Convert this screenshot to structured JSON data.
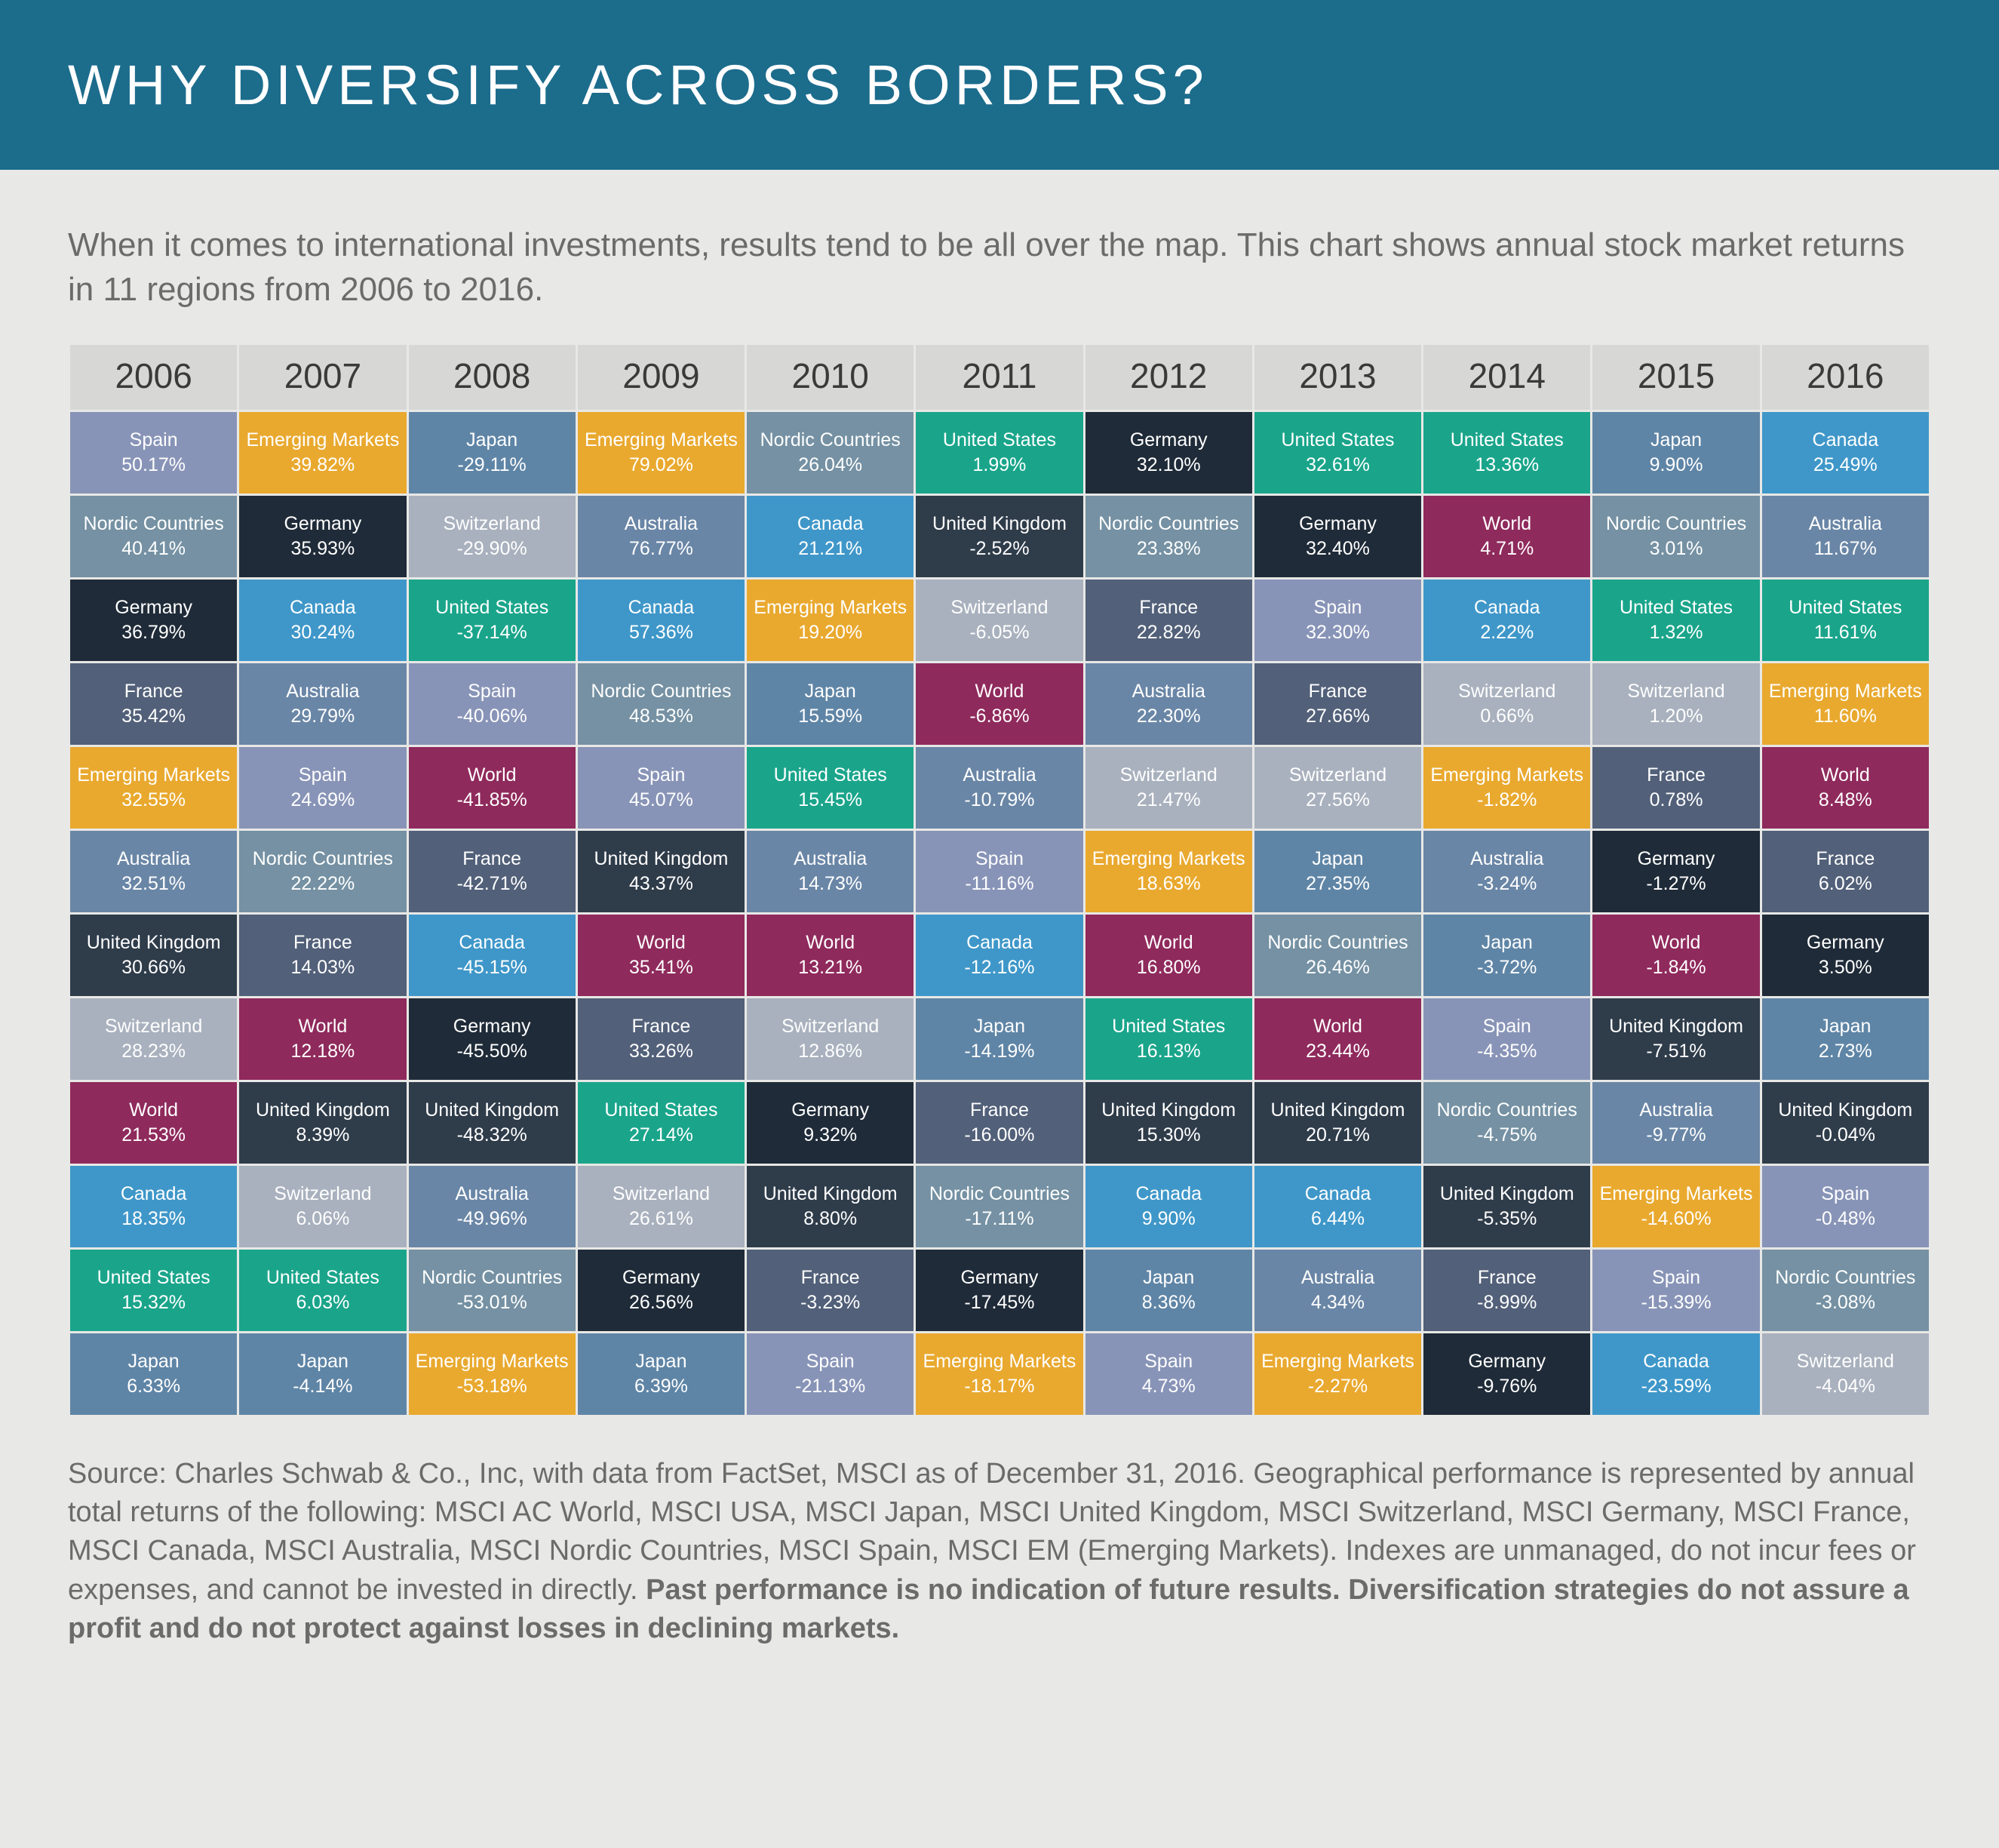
{
  "title": "WHY DIVERSIFY ACROSS BORDERS?",
  "title_bar_bg": "#1c6c8c",
  "intro": "When it comes to international investments, results tend to be all over the map. This chart shows annual stock market returns in 11 regions from 2006 to 2016.",
  "years": [
    "2006",
    "2007",
    "2008",
    "2009",
    "2010",
    "2011",
    "2012",
    "2013",
    "2014",
    "2015",
    "2016"
  ],
  "header_bg": "#d7d7d5",
  "header_text_color": "#3a3a3a",
  "page_bg": "#e8e8e6",
  "categories": {
    "Spain": {
      "bg": "#8894b7",
      "fg": "#ffffff"
    },
    "Nordic Countries": {
      "bg": "#7591a3",
      "fg": "#ffffff"
    },
    "Germany": {
      "bg": "#1f2b38",
      "fg": "#ffffff"
    },
    "France": {
      "bg": "#526079",
      "fg": "#ffffff"
    },
    "Emerging Markets": {
      "bg": "#e9a92f",
      "fg": "#ffffff"
    },
    "Australia": {
      "bg": "#6a86a6",
      "fg": "#ffffff"
    },
    "United Kingdom": {
      "bg": "#2f3c4a",
      "fg": "#ffffff"
    },
    "Switzerland": {
      "bg": "#a9b1be",
      "fg": "#ffffff"
    },
    "World": {
      "bg": "#8f2a5c",
      "fg": "#ffffff"
    },
    "Canada": {
      "bg": "#3f97c9",
      "fg": "#ffffff"
    },
    "United States": {
      "bg": "#1aa58b",
      "fg": "#ffffff"
    },
    "Japan": {
      "bg": "#5f85a6",
      "fg": "#ffffff"
    }
  },
  "rows": [
    [
      {
        "c": "Spain",
        "v": "50.17%"
      },
      {
        "c": "Emerging Markets",
        "v": "39.82%"
      },
      {
        "c": "Japan",
        "v": "-29.11%"
      },
      {
        "c": "Emerging Markets",
        "v": "79.02%"
      },
      {
        "c": "Nordic Countries",
        "v": "26.04%"
      },
      {
        "c": "United States",
        "v": "1.99%"
      },
      {
        "c": "Germany",
        "v": "32.10%"
      },
      {
        "c": "United States",
        "v": "32.61%"
      },
      {
        "c": "United States",
        "v": "13.36%"
      },
      {
        "c": "Japan",
        "v": "9.90%"
      },
      {
        "c": "Canada",
        "v": "25.49%"
      }
    ],
    [
      {
        "c": "Nordic Countries",
        "v": "40.41%"
      },
      {
        "c": "Germany",
        "v": "35.93%"
      },
      {
        "c": "Switzerland",
        "v": "-29.90%"
      },
      {
        "c": "Australia",
        "v": "76.77%"
      },
      {
        "c": "Canada",
        "v": "21.21%"
      },
      {
        "c": "United Kingdom",
        "v": "-2.52%"
      },
      {
        "c": "Nordic Countries",
        "v": "23.38%"
      },
      {
        "c": "Germany",
        "v": "32.40%"
      },
      {
        "c": "World",
        "v": "4.71%"
      },
      {
        "c": "Nordic Countries",
        "v": "3.01%"
      },
      {
        "c": "Australia",
        "v": "11.67%"
      }
    ],
    [
      {
        "c": "Germany",
        "v": "36.79%"
      },
      {
        "c": "Canada",
        "v": "30.24%"
      },
      {
        "c": "United States",
        "v": "-37.14%"
      },
      {
        "c": "Canada",
        "v": "57.36%"
      },
      {
        "c": "Emerging Markets",
        "v": "19.20%"
      },
      {
        "c": "Switzerland",
        "v": "-6.05%"
      },
      {
        "c": "France",
        "v": "22.82%"
      },
      {
        "c": "Spain",
        "v": "32.30%"
      },
      {
        "c": "Canada",
        "v": "2.22%"
      },
      {
        "c": "United States",
        "v": "1.32%"
      },
      {
        "c": "United States",
        "v": "11.61%"
      }
    ],
    [
      {
        "c": "France",
        "v": "35.42%"
      },
      {
        "c": "Australia",
        "v": "29.79%"
      },
      {
        "c": "Spain",
        "v": "-40.06%"
      },
      {
        "c": "Nordic Countries",
        "v": "48.53%"
      },
      {
        "c": "Japan",
        "v": "15.59%"
      },
      {
        "c": "World",
        "v": "-6.86%"
      },
      {
        "c": "Australia",
        "v": "22.30%"
      },
      {
        "c": "France",
        "v": "27.66%"
      },
      {
        "c": "Switzerland",
        "v": "0.66%"
      },
      {
        "c": "Switzerland",
        "v": "1.20%"
      },
      {
        "c": "Emerging Markets",
        "v": "11.60%"
      }
    ],
    [
      {
        "c": "Emerging Markets",
        "v": "32.55%"
      },
      {
        "c": "Spain",
        "v": "24.69%"
      },
      {
        "c": "World",
        "v": "-41.85%"
      },
      {
        "c": "Spain",
        "v": "45.07%"
      },
      {
        "c": "United States",
        "v": "15.45%"
      },
      {
        "c": "Australia",
        "v": "-10.79%"
      },
      {
        "c": "Switzerland",
        "v": "21.47%"
      },
      {
        "c": "Switzerland",
        "v": "27.56%"
      },
      {
        "c": "Emerging Markets",
        "v": "-1.82%"
      },
      {
        "c": "France",
        "v": "0.78%"
      },
      {
        "c": "World",
        "v": "8.48%"
      }
    ],
    [
      {
        "c": "Australia",
        "v": "32.51%"
      },
      {
        "c": "Nordic Countries",
        "v": "22.22%"
      },
      {
        "c": "France",
        "v": "-42.71%"
      },
      {
        "c": "United Kingdom",
        "v": "43.37%"
      },
      {
        "c": "Australia",
        "v": "14.73%"
      },
      {
        "c": "Spain",
        "v": "-11.16%"
      },
      {
        "c": "Emerging Markets",
        "v": "18.63%"
      },
      {
        "c": "Japan",
        "v": "27.35%"
      },
      {
        "c": "Australia",
        "v": "-3.24%"
      },
      {
        "c": "Germany",
        "v": "-1.27%"
      },
      {
        "c": "France",
        "v": "6.02%"
      }
    ],
    [
      {
        "c": "United Kingdom",
        "v": "30.66%"
      },
      {
        "c": "France",
        "v": "14.03%"
      },
      {
        "c": "Canada",
        "v": "-45.15%"
      },
      {
        "c": "World",
        "v": "35.41%"
      },
      {
        "c": "World",
        "v": "13.21%"
      },
      {
        "c": "Canada",
        "v": "-12.16%"
      },
      {
        "c": "World",
        "v": "16.80%"
      },
      {
        "c": "Nordic Countries",
        "v": "26.46%"
      },
      {
        "c": "Japan",
        "v": "-3.72%"
      },
      {
        "c": "World",
        "v": "-1.84%"
      },
      {
        "c": "Germany",
        "v": "3.50%"
      }
    ],
    [
      {
        "c": "Switzerland",
        "v": "28.23%"
      },
      {
        "c": "World",
        "v": "12.18%"
      },
      {
        "c": "Germany",
        "v": "-45.50%"
      },
      {
        "c": "France",
        "v": "33.26%"
      },
      {
        "c": "Switzerland",
        "v": "12.86%"
      },
      {
        "c": "Japan",
        "v": "-14.19%"
      },
      {
        "c": "United States",
        "v": "16.13%"
      },
      {
        "c": "World",
        "v": "23.44%"
      },
      {
        "c": "Spain",
        "v": "-4.35%"
      },
      {
        "c": "United Kingdom",
        "v": "-7.51%"
      },
      {
        "c": "Japan",
        "v": "2.73%"
      }
    ],
    [
      {
        "c": "World",
        "v": "21.53%"
      },
      {
        "c": "United Kingdom",
        "v": "8.39%"
      },
      {
        "c": "United Kingdom",
        "v": "-48.32%"
      },
      {
        "c": "United States",
        "v": "27.14%"
      },
      {
        "c": "Germany",
        "v": "9.32%"
      },
      {
        "c": "France",
        "v": "-16.00%"
      },
      {
        "c": "United Kingdom",
        "v": "15.30%"
      },
      {
        "c": "United Kingdom",
        "v": "20.71%"
      },
      {
        "c": "Nordic Countries",
        "v": "-4.75%"
      },
      {
        "c": "Australia",
        "v": "-9.77%"
      },
      {
        "c": "United Kingdom",
        "v": "-0.04%"
      }
    ],
    [
      {
        "c": "Canada",
        "v": "18.35%"
      },
      {
        "c": "Switzerland",
        "v": "6.06%"
      },
      {
        "c": "Australia",
        "v": "-49.96%"
      },
      {
        "c": "Switzerland",
        "v": "26.61%"
      },
      {
        "c": "United Kingdom",
        "v": "8.80%"
      },
      {
        "c": "Nordic Countries",
        "v": "-17.11%"
      },
      {
        "c": "Canada",
        "v": "9.90%"
      },
      {
        "c": "Canada",
        "v": "6.44%"
      },
      {
        "c": "United Kingdom",
        "v": "-5.35%"
      },
      {
        "c": "Emerging Markets",
        "v": "-14.60%"
      },
      {
        "c": "Spain",
        "v": "-0.48%"
      }
    ],
    [
      {
        "c": "United States",
        "v": "15.32%"
      },
      {
        "c": "United States",
        "v": "6.03%"
      },
      {
        "c": "Nordic Countries",
        "v": "-53.01%"
      },
      {
        "c": "Germany",
        "v": "26.56%"
      },
      {
        "c": "France",
        "v": "-3.23%"
      },
      {
        "c": "Germany",
        "v": "-17.45%"
      },
      {
        "c": "Japan",
        "v": "8.36%"
      },
      {
        "c": "Australia",
        "v": "4.34%"
      },
      {
        "c": "France",
        "v": "-8.99%"
      },
      {
        "c": "Spain",
        "v": "-15.39%"
      },
      {
        "c": "Nordic Countries",
        "v": "-3.08%"
      }
    ],
    [
      {
        "c": "Japan",
        "v": "6.33%"
      },
      {
        "c": "Japan",
        "v": "-4.14%"
      },
      {
        "c": "Emerging Markets",
        "v": "-53.18%"
      },
      {
        "c": "Japan",
        "v": "6.39%"
      },
      {
        "c": "Spain",
        "v": "-21.13%"
      },
      {
        "c": "Emerging Markets",
        "v": "-18.17%"
      },
      {
        "c": "Spain",
        "v": "4.73%"
      },
      {
        "c": "Emerging Markets",
        "v": "-2.27%"
      },
      {
        "c": "Germany",
        "v": "-9.76%"
      },
      {
        "c": "Canada",
        "v": "-23.59%"
      },
      {
        "c": "Switzerland",
        "v": "-4.04%"
      }
    ]
  ],
  "footnote_plain": "Source: Charles Schwab & Co., Inc, with data from FactSet, MSCI as of December 31, 2016. Geographical performance is represented by annual total returns of the following: MSCI AC World, MSCI USA, MSCI Japan, MSCI United Kingdom, MSCI Switzerland, MSCI Germany, MSCI France, MSCI Canada, MSCI Australia, MSCI Nordic Countries, MSCI Spain, MSCI EM (Emerging Markets). Indexes are unmanaged, do not incur fees or expenses, and cannot be invested in directly. ",
  "footnote_bold": "Past performance is no indication of future results. Diversification strategies do not assure a profit and do not protect against losses in declining markets."
}
